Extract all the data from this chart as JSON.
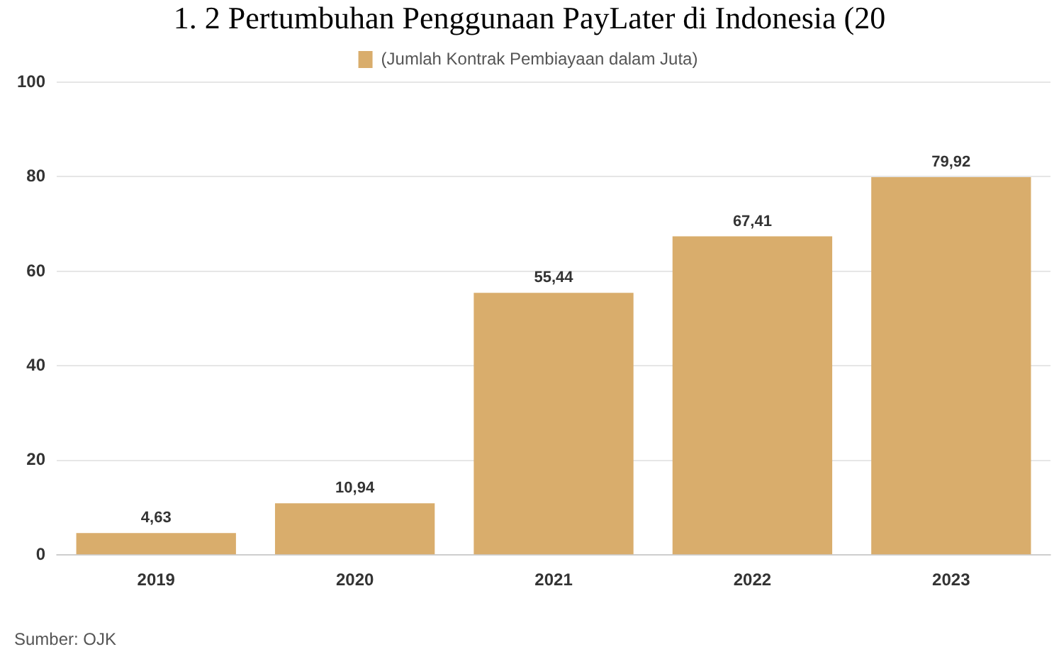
{
  "chart_data": {
    "type": "bar",
    "title": "1. 2 Pertumbuhan Penggunaan PayLater di Indonesia (20",
    "categories": [
      "2019",
      "2020",
      "2021",
      "2022",
      "2023"
    ],
    "series": [
      {
        "name": "(Jumlah Kontrak Pembiayaan dalam Juta)",
        "color": "#d9ad6c",
        "values": [
          4.63,
          10.94,
          55.44,
          67.41,
          79.92
        ],
        "value_labels": [
          "4,63",
          "10,94",
          "55,44",
          "67,41",
          "79,92"
        ]
      }
    ],
    "ylim": [
      0,
      100
    ],
    "yticks": [
      0,
      20,
      40,
      60,
      80,
      100
    ],
    "grid": "y",
    "legend": "top",
    "annotations": [
      "Sumber: OJK"
    ]
  }
}
